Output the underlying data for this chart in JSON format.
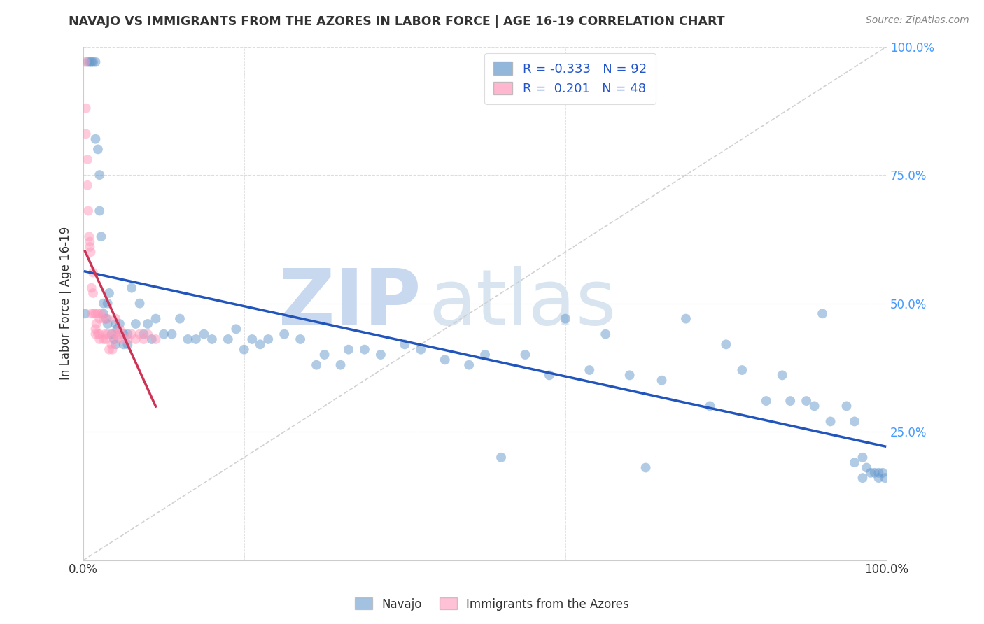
{
  "title": "NAVAJO VS IMMIGRANTS FROM THE AZORES IN LABOR FORCE | AGE 16-19 CORRELATION CHART",
  "source": "Source: ZipAtlas.com",
  "ylabel": "In Labor Force | Age 16-19",
  "xlim": [
    0,
    1
  ],
  "ylim": [
    0,
    1
  ],
  "navajo_color": "#6699cc",
  "azores_color": "#ff99bb",
  "trend_navajo_color": "#2255bb",
  "trend_azores_color": "#cc3355",
  "diagonal_color": "#cccccc",
  "watermark_color": "#dde8f5",
  "legend_navajo_R": "-0.333",
  "legend_navajo_N": "92",
  "legend_azores_R": "0.201",
  "legend_azores_N": "48",
  "background_color": "#ffffff",
  "grid_color": "#dddddd",
  "navajo_x": [
    0.002,
    0.005,
    0.008,
    0.01,
    0.012,
    0.015,
    0.015,
    0.018,
    0.02,
    0.02,
    0.022,
    0.025,
    0.025,
    0.028,
    0.03,
    0.03,
    0.032,
    0.035,
    0.038,
    0.04,
    0.04,
    0.042,
    0.045,
    0.05,
    0.05,
    0.055,
    0.055,
    0.06,
    0.065,
    0.07,
    0.075,
    0.08,
    0.085,
    0.09,
    0.1,
    0.11,
    0.12,
    0.13,
    0.14,
    0.15,
    0.16,
    0.18,
    0.19,
    0.2,
    0.21,
    0.22,
    0.23,
    0.25,
    0.27,
    0.29,
    0.3,
    0.32,
    0.33,
    0.35,
    0.37,
    0.4,
    0.42,
    0.45,
    0.48,
    0.5,
    0.52,
    0.55,
    0.58,
    0.6,
    0.63,
    0.65,
    0.68,
    0.7,
    0.72,
    0.75,
    0.78,
    0.8,
    0.82,
    0.85,
    0.87,
    0.88,
    0.9,
    0.91,
    0.92,
    0.93,
    0.95,
    0.96,
    0.96,
    0.97,
    0.97,
    0.975,
    0.98,
    0.985,
    0.99,
    0.99,
    0.995,
    0.998
  ],
  "navajo_y": [
    0.48,
    0.97,
    0.97,
    0.97,
    0.97,
    0.97,
    0.82,
    0.8,
    0.75,
    0.68,
    0.63,
    0.5,
    0.48,
    0.47,
    0.5,
    0.46,
    0.52,
    0.44,
    0.43,
    0.46,
    0.42,
    0.45,
    0.46,
    0.44,
    0.42,
    0.44,
    0.42,
    0.53,
    0.46,
    0.5,
    0.44,
    0.46,
    0.43,
    0.47,
    0.44,
    0.44,
    0.47,
    0.43,
    0.43,
    0.44,
    0.43,
    0.43,
    0.45,
    0.41,
    0.43,
    0.42,
    0.43,
    0.44,
    0.43,
    0.38,
    0.4,
    0.38,
    0.41,
    0.41,
    0.4,
    0.42,
    0.41,
    0.39,
    0.38,
    0.4,
    0.2,
    0.4,
    0.36,
    0.47,
    0.37,
    0.44,
    0.36,
    0.18,
    0.35,
    0.47,
    0.3,
    0.42,
    0.37,
    0.31,
    0.36,
    0.31,
    0.31,
    0.3,
    0.48,
    0.27,
    0.3,
    0.27,
    0.19,
    0.2,
    0.16,
    0.18,
    0.17,
    0.17,
    0.16,
    0.17,
    0.17,
    0.16
  ],
  "azores_x": [
    0.002,
    0.003,
    0.003,
    0.005,
    0.005,
    0.006,
    0.007,
    0.008,
    0.008,
    0.009,
    0.01,
    0.01,
    0.012,
    0.012,
    0.013,
    0.015,
    0.015,
    0.015,
    0.016,
    0.018,
    0.018,
    0.02,
    0.02,
    0.02,
    0.022,
    0.025,
    0.025,
    0.027,
    0.028,
    0.03,
    0.03,
    0.032,
    0.035,
    0.036,
    0.038,
    0.04,
    0.04,
    0.042,
    0.045,
    0.047,
    0.05,
    0.055,
    0.06,
    0.065,
    0.07,
    0.075,
    0.08,
    0.09
  ],
  "azores_y": [
    0.97,
    0.88,
    0.83,
    0.78,
    0.73,
    0.68,
    0.63,
    0.62,
    0.61,
    0.6,
    0.53,
    0.48,
    0.56,
    0.52,
    0.48,
    0.48,
    0.45,
    0.44,
    0.46,
    0.48,
    0.44,
    0.47,
    0.44,
    0.43,
    0.48,
    0.47,
    0.43,
    0.44,
    0.43,
    0.47,
    0.44,
    0.41,
    0.42,
    0.41,
    0.44,
    0.47,
    0.44,
    0.43,
    0.45,
    0.44,
    0.43,
    0.43,
    0.44,
    0.43,
    0.44,
    0.43,
    0.44,
    0.43
  ]
}
